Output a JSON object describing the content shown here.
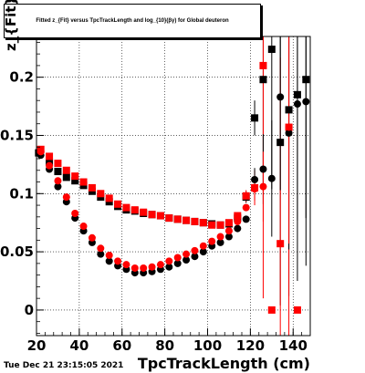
{
  "chart_data": {
    "type": "scatter",
    "title": "Fitted  z_{Fit}  versus TpcTrackLength and log_{10}(βγ) for Global deuteron",
    "xlabel": "TpcTrackLength (cm)",
    "ylabel": "z_{Fit}",
    "xlim": [
      20,
      148
    ],
    "ylim": [
      -0.022,
      0.235
    ],
    "xticks": [
      20,
      40,
      60,
      80,
      100,
      120,
      140
    ],
    "yticks": [
      0,
      0.05,
      0.1,
      0.15,
      0.2
    ],
    "ytick_labels": [
      "0",
      "0.05",
      "0.1",
      "0.15",
      "0.2"
    ],
    "grid": true,
    "series": [
      {
        "name": "",
        "color": "#000000",
        "marker": "square",
        "x": [
          21,
          26,
          30,
          34,
          38,
          42,
          46,
          50,
          54,
          58,
          62,
          66,
          70,
          74,
          78,
          82,
          86,
          90,
          94,
          98,
          102,
          106,
          110,
          114,
          118,
          122,
          126,
          130,
          134,
          138,
          142,
          146
        ],
        "y": [
          0.135,
          0.127,
          0.119,
          0.114,
          0.111,
          0.107,
          0.102,
          0.097,
          0.093,
          0.089,
          0.086,
          0.085,
          0.083,
          0.082,
          0.081,
          0.079,
          0.078,
          0.077,
          0.076,
          0.075,
          0.074,
          0.073,
          0.074,
          0.079,
          0.097,
          0.165,
          0.198,
          0.224,
          0.144,
          0.172,
          0.185,
          0.198
        ],
        "yerr": [
          0.001,
          0.001,
          0.001,
          0.001,
          0.001,
          0.001,
          0.001,
          0.001,
          0.001,
          0.001,
          0.001,
          0.001,
          0.001,
          0.001,
          0.001,
          0.001,
          0.001,
          0.001,
          0.001,
          0.001,
          0.001,
          0.002,
          0.002,
          0.003,
          0.005,
          0.015,
          0.09,
          0.12,
          0.14,
          0.16,
          0.16,
          0.16
        ]
      },
      {
        "name": "",
        "color": "#ff0000",
        "marker": "square",
        "x": [
          22,
          26,
          30,
          34,
          38,
          42,
          46,
          50,
          54,
          58,
          62,
          66,
          70,
          74,
          78,
          82,
          86,
          90,
          94,
          98,
          102,
          106,
          110,
          114,
          118,
          122,
          126,
          130,
          134,
          138,
          142
        ],
        "y": [
          0.138,
          0.132,
          0.126,
          0.12,
          0.115,
          0.11,
          0.105,
          0.1,
          0.096,
          0.091,
          0.088,
          0.086,
          0.084,
          0.082,
          0.081,
          0.079,
          0.078,
          0.077,
          0.076,
          0.075,
          0.073,
          0.073,
          0.075,
          0.081,
          0.098,
          0.105,
          0.21,
          0.0,
          0.057,
          0.157,
          0.0
        ],
        "yerr": [
          0.001,
          0.001,
          0.001,
          0.001,
          0.001,
          0.001,
          0.001,
          0.001,
          0.001,
          0.001,
          0.001,
          0.001,
          0.001,
          0.001,
          0.001,
          0.001,
          0.001,
          0.001,
          0.001,
          0.001,
          0.001,
          0.002,
          0.002,
          0.003,
          0.005,
          0.015,
          0.2,
          0.0,
          0.16,
          0.2,
          0.0
        ]
      },
      {
        "name": "",
        "color": "#000000",
        "marker": "circle",
        "x": [
          22,
          26,
          30,
          34,
          38,
          42,
          46,
          50,
          54,
          58,
          62,
          66,
          70,
          74,
          78,
          82,
          86,
          90,
          94,
          98,
          102,
          106,
          110,
          114,
          118,
          122,
          126,
          130,
          134,
          138,
          142,
          146
        ],
        "y": [
          0.133,
          0.121,
          0.106,
          0.093,
          0.079,
          0.068,
          0.058,
          0.048,
          0.042,
          0.038,
          0.035,
          0.032,
          0.032,
          0.033,
          0.035,
          0.037,
          0.04,
          0.043,
          0.046,
          0.05,
          0.055,
          0.058,
          0.063,
          0.07,
          0.078,
          0.112,
          0.121,
          0.113,
          0.183,
          0.152,
          0.177,
          0.179
        ],
        "yerr": [
          0.001,
          0.001,
          0.001,
          0.001,
          0.001,
          0.001,
          0.001,
          0.001,
          0.001,
          0.001,
          0.001,
          0.001,
          0.001,
          0.001,
          0.001,
          0.001,
          0.001,
          0.001,
          0.001,
          0.001,
          0.001,
          0.001,
          0.002,
          0.003,
          0.004,
          0.01,
          0.03,
          0.05,
          0.08,
          0.1,
          0.1,
          0.1
        ]
      },
      {
        "name": "",
        "color": "#ff0000",
        "marker": "circle",
        "x": [
          22,
          26,
          30,
          34,
          38,
          42,
          46,
          50,
          54,
          58,
          62,
          66,
          70,
          74,
          78,
          82,
          86,
          90,
          94,
          98,
          102,
          106,
          110,
          114,
          118,
          122,
          126,
          138
        ],
        "y": [
          0.136,
          0.124,
          0.111,
          0.097,
          0.083,
          0.072,
          0.062,
          0.053,
          0.047,
          0.042,
          0.039,
          0.036,
          0.036,
          0.037,
          0.039,
          0.042,
          0.045,
          0.048,
          0.051,
          0.055,
          0.059,
          0.063,
          0.068,
          0.076,
          0.088,
          0.104,
          0.106,
          0.157
        ],
        "yerr": [
          0.001,
          0.001,
          0.001,
          0.001,
          0.001,
          0.001,
          0.001,
          0.001,
          0.001,
          0.001,
          0.001,
          0.001,
          0.001,
          0.001,
          0.001,
          0.001,
          0.001,
          0.001,
          0.001,
          0.001,
          0.001,
          0.001,
          0.002,
          0.003,
          0.004,
          0.01,
          0.03,
          0.1
        ]
      }
    ]
  },
  "footer_text": "Tue Dec 21 23:15:05 2021"
}
